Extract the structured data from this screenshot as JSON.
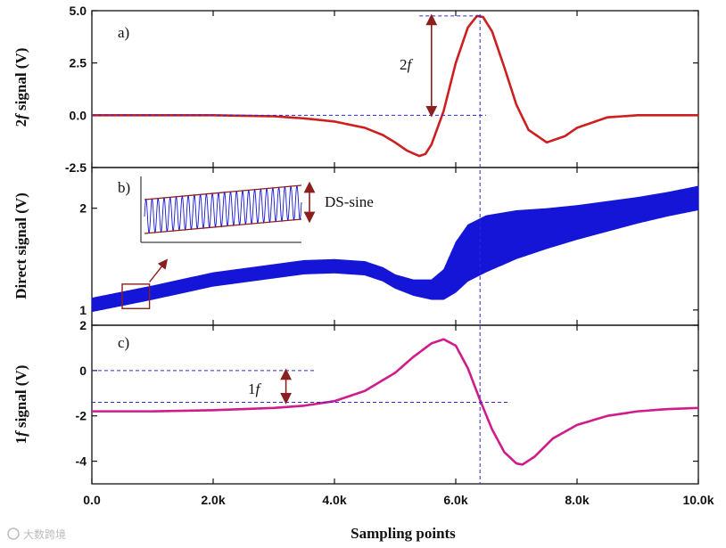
{
  "chart_data": [
    {
      "id": "a",
      "type": "line",
      "panel_label": "a)",
      "ylabel_prefix": "2",
      "ylabel_var": "f",
      "ylabel_suffix": " signal (V)",
      "ylim": [
        -2.5,
        5.0
      ],
      "yticks": [
        -2.5,
        0.0,
        2.5,
        5.0
      ],
      "ytick_labels": [
        "-2.5",
        "0.0",
        "2.5",
        "5.0"
      ],
      "color": "#cc1f1f",
      "series": [
        {
          "name": "2f signal",
          "x": [
            0,
            1000,
            2000,
            3000,
            3500,
            4000,
            4500,
            4800,
            5000,
            5200,
            5400,
            5500,
            5600,
            5800,
            6000,
            6200,
            6350,
            6450,
            6600,
            6800,
            7000,
            7200,
            7500,
            7800,
            8000,
            8500,
            9000,
            9500,
            10000
          ],
          "y": [
            0.0,
            0.0,
            0.0,
            -0.05,
            -0.15,
            -0.3,
            -0.6,
            -0.95,
            -1.3,
            -1.7,
            -1.95,
            -1.85,
            -1.4,
            0.2,
            2.5,
            4.2,
            4.75,
            4.7,
            4.0,
            2.3,
            0.5,
            -0.7,
            -1.3,
            -1.0,
            -0.6,
            -0.1,
            0.0,
            0.0,
            0.0
          ]
        }
      ],
      "annotation": {
        "prefix": "2",
        "var": "f",
        "from_y": 0.0,
        "to_y": 4.75,
        "x": 5600
      }
    },
    {
      "id": "b",
      "type": "line",
      "panel_label": "b)",
      "ylabel": "Direct signal (V)",
      "ylim": [
        0.85,
        2.4
      ],
      "yticks": [
        1,
        2
      ],
      "ytick_labels": [
        "1",
        "2"
      ],
      "color": "#1515d8",
      "series": [
        {
          "name": "direct signal (oscillating envelope)",
          "x": [
            0,
            1000,
            2000,
            3000,
            3500,
            4000,
            4500,
            4800,
            5000,
            5300,
            5600,
            5800,
            6000,
            6200,
            6500,
            7000,
            7500,
            8000,
            8500,
            9000,
            9500,
            10000
          ],
          "center": [
            1.05,
            1.17,
            1.3,
            1.38,
            1.42,
            1.43,
            1.41,
            1.35,
            1.28,
            1.22,
            1.2,
            1.25,
            1.42,
            1.56,
            1.65,
            1.74,
            1.8,
            1.86,
            1.92,
            1.98,
            2.04,
            2.1
          ],
          "amplitude": [
            0.07,
            0.07,
            0.07,
            0.07,
            0.07,
            0.07,
            0.07,
            0.07,
            0.07,
            0.08,
            0.1,
            0.15,
            0.25,
            0.28,
            0.28,
            0.24,
            0.2,
            0.17,
            0.15,
            0.13,
            0.12,
            0.12
          ]
        }
      ],
      "inset_label": "DS-sine"
    },
    {
      "id": "c",
      "type": "line",
      "panel_label": "c)",
      "ylabel_prefix": "1",
      "ylabel_var": "f",
      "ylabel_suffix": " signal (V)",
      "ylim": [
        -5.0,
        2.0
      ],
      "yticks": [
        -4,
        -2,
        0,
        2
      ],
      "ytick_labels": [
        "-4",
        "-2",
        "0",
        "2"
      ],
      "color": "#d01c8b",
      "series": [
        {
          "name": "1f signal",
          "x": [
            0,
            1000,
            2000,
            3000,
            3500,
            4000,
            4500,
            5000,
            5300,
            5600,
            5800,
            6000,
            6200,
            6400,
            6600,
            6800,
            7000,
            7100,
            7300,
            7600,
            8000,
            8500,
            9000,
            9500,
            10000
          ],
          "y": [
            -1.8,
            -1.8,
            -1.75,
            -1.65,
            -1.55,
            -1.35,
            -0.9,
            -0.1,
            0.6,
            1.2,
            1.38,
            1.1,
            0.1,
            -1.3,
            -2.6,
            -3.6,
            -4.1,
            -4.15,
            -3.8,
            -3.0,
            -2.4,
            -2.0,
            -1.8,
            -1.7,
            -1.65
          ]
        }
      ],
      "annotation": {
        "prefix": "1",
        "var": "f",
        "ref_upper": 0.0,
        "ref_lower": -1.4,
        "x": 3200
      }
    }
  ],
  "shared_x": {
    "xlabel": "Sampling points",
    "xlim": [
      0,
      10000
    ],
    "xticks": [
      0,
      2000,
      4000,
      6000,
      8000,
      10000
    ],
    "xtick_labels": [
      "0.0",
      "2.0k",
      "4.0k",
      "6.0k",
      "8.0k",
      "10.0k"
    ],
    "marker_x": 6400
  },
  "watermark": "大数跨境",
  "colors": {
    "box": "#8b1f1f",
    "guide": "#2a2ad6",
    "axis": "#111111"
  }
}
